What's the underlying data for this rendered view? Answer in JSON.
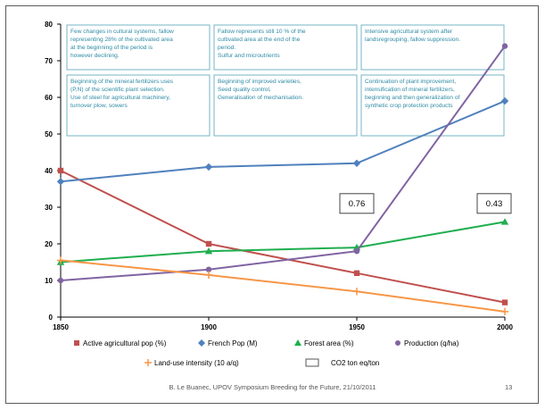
{
  "chart_data": {
    "type": "line",
    "x": [
      1850,
      1900,
      1950,
      2000
    ],
    "ylim": [
      0,
      80
    ],
    "yticks": [
      0,
      10,
      20,
      30,
      40,
      50,
      60,
      70,
      80
    ],
    "xticks": [
      "1850",
      "1900",
      "1950",
      "2000"
    ],
    "grid": false,
    "series": [
      {
        "name": "Active agricultural pop (%)",
        "values": [
          40,
          20,
          12,
          4
        ],
        "color": "#c0504d",
        "marker": "square"
      },
      {
        "name": "French Pop  (M)",
        "values": [
          37,
          41,
          42,
          59
        ],
        "color": "#4f81bd",
        "marker": "diamond"
      },
      {
        "name": "Forest area (%)",
        "values": [
          15,
          18,
          19,
          26
        ],
        "color": "#1fae4e",
        "marker": "triangle"
      },
      {
        "name": "Production (q/ha)",
        "values": [
          10,
          13,
          18,
          74
        ],
        "color": "#8064a2",
        "marker": "circle"
      },
      {
        "name": "Land-use intensity (10 a/q)",
        "values": [
          15.5,
          11.5,
          7,
          1.5
        ],
        "color": "#f79646",
        "marker": "plus"
      }
    ],
    "legend_extra": "CO2 ton eq/ton",
    "value_boxes": [
      {
        "label": "0.76",
        "x": 1950,
        "y": 32
      },
      {
        "label": "0.43",
        "x": 2000,
        "y": 32
      }
    ],
    "annotations": [
      {
        "lines": [
          "Few changes in cultural systems, fallow",
          "representing 28% of the cultivated area",
          "at the beginning of the period is",
          "however declining."
        ]
      },
      {
        "lines": [
          "Fallow represents still 10 % of the",
          "cultivated area at the end of the",
          "period.",
          "Sulfur and microutrients"
        ]
      },
      {
        "lines": [
          "Intensive agricultural system after",
          "landsregrouping, fallow suppression."
        ]
      },
      {
        "lines": [
          "Beginning of the mineral fertilizers uses",
          "(P,N) of the scientific plant selection.",
          "Use of steel for agricultural machinery,",
          "turnover plow, sowers"
        ]
      },
      {
        "lines": [
          "Beginning of improved varieties,",
          "Seed quality control,",
          "Generalisation of mechanisation."
        ]
      },
      {
        "lines": [
          "Continuation of plant improvement,",
          "intensification of mineral fertilizers,",
          "beginning and then generalization of",
          "synthetic crop protection products"
        ]
      }
    ]
  },
  "footer": {
    "text": "B. Le Buanec, UPOV Symposium Breeding for the Future, 21/10/2011",
    "page": "13"
  },
  "colors": {
    "axis": "#000000",
    "annotation_border": "#76b6c6",
    "annotation_text": "#2e8aa3"
  }
}
